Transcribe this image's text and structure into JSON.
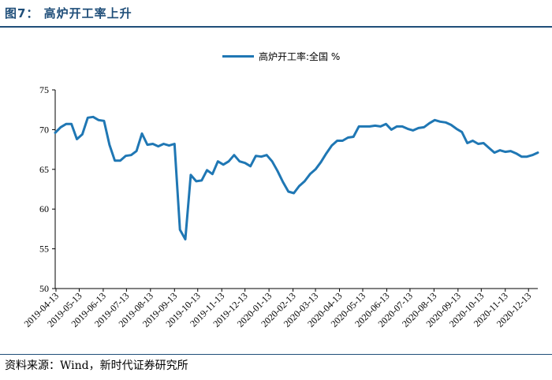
{
  "header": {
    "title": "图7：  高炉开工率上升"
  },
  "footer": {
    "source": "资料来源：Wind，新时代证券研究所"
  },
  "chart_data": {
    "type": "line",
    "title": "",
    "xlabel": "",
    "ylabel": "",
    "ylim": [
      50,
      75
    ],
    "yticks": [
      50,
      55,
      60,
      65,
      70,
      75
    ],
    "legend_position": "top-center",
    "x_tick_labels": [
      "2019-04-13",
      "2019-05-13",
      "2019-06-13",
      "2019-07-13",
      "2019-08-13",
      "2019-09-13",
      "2019-10-13",
      "2019-11-13",
      "2019-12-13",
      "2020-01-13",
      "2020-02-13",
      "2020-03-13",
      "2020-04-13",
      "2020-05-13",
      "2020-06-13",
      "2020-07-13",
      "2020-08-13",
      "2020-09-13",
      "2020-10-13",
      "2020-11-13",
      "2020-12-13"
    ],
    "series": [
      {
        "name": "高炉开工率:全国 %",
        "color": "#1f77b4",
        "points": [
          [
            "2019-04-12",
            69.6
          ],
          [
            "2019-04-19",
            70.3
          ],
          [
            "2019-04-26",
            70.7
          ],
          [
            "2019-05-03",
            70.7
          ],
          [
            "2019-05-10",
            68.8
          ],
          [
            "2019-05-17",
            69.4
          ],
          [
            "2019-05-24",
            71.5
          ],
          [
            "2019-05-31",
            71.6
          ],
          [
            "2019-06-07",
            71.2
          ],
          [
            "2019-06-14",
            71.1
          ],
          [
            "2019-06-21",
            68.1
          ],
          [
            "2019-06-28",
            66.1
          ],
          [
            "2019-07-05",
            66.1
          ],
          [
            "2019-07-12",
            66.7
          ],
          [
            "2019-07-19",
            66.8
          ],
          [
            "2019-07-26",
            67.3
          ],
          [
            "2019-08-02",
            69.5
          ],
          [
            "2019-08-09",
            68.1
          ],
          [
            "2019-08-16",
            68.2
          ],
          [
            "2019-08-23",
            67.9
          ],
          [
            "2019-08-30",
            68.2
          ],
          [
            "2019-09-06",
            68.0
          ],
          [
            "2019-09-13",
            68.2
          ],
          [
            "2019-09-20",
            57.4
          ],
          [
            "2019-09-27",
            56.2
          ],
          [
            "2019-10-04",
            64.3
          ],
          [
            "2019-10-11",
            63.5
          ],
          [
            "2019-10-18",
            63.6
          ],
          [
            "2019-10-25",
            64.9
          ],
          [
            "2019-11-01",
            64.4
          ],
          [
            "2019-11-08",
            66.0
          ],
          [
            "2019-11-15",
            65.6
          ],
          [
            "2019-11-22",
            66.0
          ],
          [
            "2019-11-29",
            66.8
          ],
          [
            "2019-12-06",
            66.0
          ],
          [
            "2019-12-13",
            65.8
          ],
          [
            "2019-12-20",
            65.4
          ],
          [
            "2019-12-27",
            66.7
          ],
          [
            "2020-01-03",
            66.6
          ],
          [
            "2020-01-10",
            66.8
          ],
          [
            "2020-01-17",
            66.0
          ],
          [
            "2020-01-24",
            64.8
          ],
          [
            "2020-01-31",
            63.4
          ],
          [
            "2020-02-07",
            62.2
          ],
          [
            "2020-02-14",
            62.0
          ],
          [
            "2020-02-21",
            62.9
          ],
          [
            "2020-02-28",
            63.5
          ],
          [
            "2020-03-06",
            64.4
          ],
          [
            "2020-03-13",
            65.0
          ],
          [
            "2020-03-20",
            65.9
          ],
          [
            "2020-03-27",
            67.0
          ],
          [
            "2020-04-03",
            68.0
          ],
          [
            "2020-04-10",
            68.6
          ],
          [
            "2020-04-17",
            68.6
          ],
          [
            "2020-04-24",
            69.0
          ],
          [
            "2020-05-01",
            69.1
          ],
          [
            "2020-05-08",
            70.4
          ],
          [
            "2020-05-15",
            70.4
          ],
          [
            "2020-05-22",
            70.4
          ],
          [
            "2020-05-29",
            70.5
          ],
          [
            "2020-06-05",
            70.4
          ],
          [
            "2020-06-12",
            70.7
          ],
          [
            "2020-06-19",
            70.0
          ],
          [
            "2020-06-26",
            70.4
          ],
          [
            "2020-07-03",
            70.4
          ],
          [
            "2020-07-10",
            70.1
          ],
          [
            "2020-07-17",
            69.9
          ],
          [
            "2020-07-24",
            70.2
          ],
          [
            "2020-07-31",
            70.3
          ],
          [
            "2020-08-07",
            70.8
          ],
          [
            "2020-08-14",
            71.2
          ],
          [
            "2020-08-21",
            71.0
          ],
          [
            "2020-08-28",
            70.9
          ],
          [
            "2020-09-04",
            70.6
          ],
          [
            "2020-09-11",
            70.1
          ],
          [
            "2020-09-18",
            69.7
          ],
          [
            "2020-09-25",
            68.3
          ],
          [
            "2020-10-02",
            68.6
          ],
          [
            "2020-10-09",
            68.2
          ],
          [
            "2020-10-16",
            68.3
          ],
          [
            "2020-10-23",
            67.7
          ],
          [
            "2020-10-30",
            67.1
          ],
          [
            "2020-11-06",
            67.4
          ],
          [
            "2020-11-13",
            67.2
          ],
          [
            "2020-11-20",
            67.3
          ],
          [
            "2020-11-27",
            67.0
          ],
          [
            "2020-12-04",
            66.6
          ],
          [
            "2020-12-11",
            66.6
          ],
          [
            "2020-12-18",
            66.8
          ],
          [
            "2020-12-25",
            67.1
          ]
        ]
      }
    ]
  }
}
